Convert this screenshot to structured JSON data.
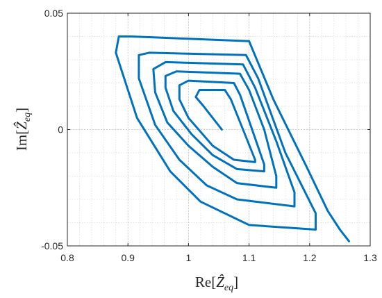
{
  "chart_data": {
    "type": "line",
    "title": "",
    "xlabel_parts": {
      "pre": "Re[",
      "hat": "Ẑ",
      "sub": "eq",
      "post": "]"
    },
    "ylabel_parts": {
      "pre": "Im[",
      "hat": "Ẑ",
      "sub": "eq",
      "post": "]"
    },
    "xlim": [
      0.8,
      1.3
    ],
    "ylim": [
      -0.05,
      0.05
    ],
    "xticks": [
      0.8,
      0.9,
      1,
      1.1,
      1.2,
      1.3
    ],
    "xtick_labels": [
      "0.8",
      "0.9",
      "1",
      "1.1",
      "1.2",
      "1.3"
    ],
    "yticks": [
      -0.05,
      0,
      0.05
    ],
    "ytick_labels": [
      "-0.05",
      "0",
      "0.05"
    ],
    "grid": "major and minor, dotted",
    "line_color": "#0072BD",
    "series": [
      {
        "points": [
          [
            1.055,
            0.0
          ],
          [
            1.04,
            0.005
          ],
          [
            1.025,
            0.01
          ],
          [
            1.012,
            0.014
          ],
          [
            1.018,
            0.017
          ],
          [
            1.06,
            0.017
          ],
          [
            1.07,
            0.013
          ],
          [
            1.09,
            0.0
          ],
          [
            1.11,
            -0.013
          ],
          [
            1.11,
            -0.014
          ],
          [
            1.075,
            -0.013
          ],
          [
            1.04,
            -0.007
          ],
          [
            1.0,
            0.005
          ],
          [
            0.985,
            0.013
          ],
          [
            0.985,
            0.019
          ],
          [
            1.0,
            0.021
          ],
          [
            1.075,
            0.02
          ],
          [
            1.085,
            0.015
          ],
          [
            1.105,
            0.0
          ],
          [
            1.125,
            -0.015
          ],
          [
            1.125,
            -0.018
          ],
          [
            1.08,
            -0.017
          ],
          [
            1.04,
            -0.011
          ],
          [
            1.005,
            -0.002
          ],
          [
            0.975,
            0.008
          ],
          [
            0.962,
            0.018
          ],
          [
            0.962,
            0.023
          ],
          [
            0.98,
            0.025
          ],
          [
            1.085,
            0.024
          ],
          [
            1.1,
            0.017
          ],
          [
            1.125,
            0.0
          ],
          [
            1.145,
            -0.02
          ],
          [
            1.145,
            -0.025
          ],
          [
            1.08,
            -0.023
          ],
          [
            1.04,
            -0.016
          ],
          [
            1.0,
            -0.007
          ],
          [
            0.965,
            0.003
          ],
          [
            0.945,
            0.016
          ],
          [
            0.942,
            0.026
          ],
          [
            0.962,
            0.029
          ],
          [
            1.09,
            0.028
          ],
          [
            1.11,
            0.018
          ],
          [
            1.145,
            -0.005
          ],
          [
            1.175,
            -0.027
          ],
          [
            1.175,
            -0.033
          ],
          [
            1.08,
            -0.03
          ],
          [
            1.03,
            -0.024
          ],
          [
            0.985,
            -0.013
          ],
          [
            0.945,
            0.002
          ],
          [
            0.918,
            0.022
          ],
          [
            0.918,
            0.032
          ],
          [
            0.935,
            0.033
          ],
          [
            1.095,
            0.032
          ],
          [
            1.115,
            0.022
          ],
          [
            1.16,
            -0.01
          ],
          [
            1.21,
            -0.036
          ],
          [
            1.21,
            -0.043
          ],
          [
            1.1,
            -0.041
          ],
          [
            1.02,
            -0.031
          ],
          [
            0.97,
            -0.018
          ],
          [
            0.915,
            0.005
          ],
          [
            0.88,
            0.033
          ],
          [
            0.885,
            0.04
          ],
          [
            0.905,
            0.04
          ],
          [
            1.1,
            0.038
          ],
          [
            1.14,
            0.013
          ],
          [
            1.195,
            -0.016
          ],
          [
            1.23,
            -0.035
          ],
          [
            1.25,
            -0.043
          ],
          [
            1.265,
            -0.048
          ]
        ]
      }
    ]
  }
}
